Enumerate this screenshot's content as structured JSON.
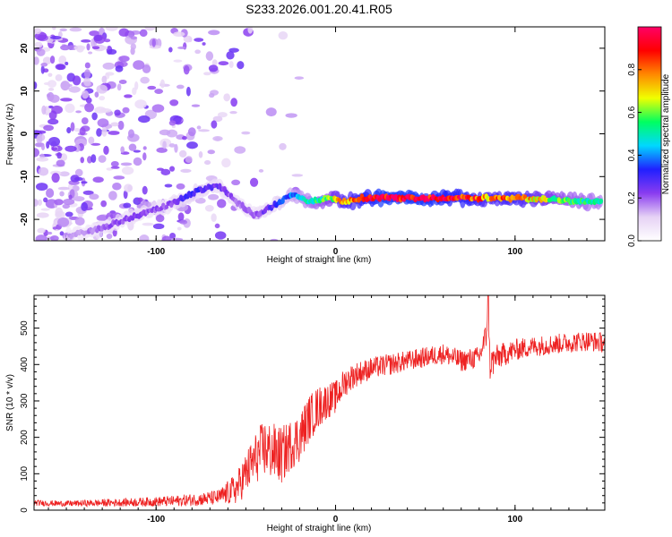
{
  "title": "S233.2026.001.20.41.R05",
  "colors": {
    "snr_line": "#ee2222",
    "axis": "#000000",
    "background": "#ffffff"
  },
  "chart_data": [
    {
      "type": "heatmap",
      "xlabel": "Height of straight line (km)",
      "ylabel": "Frequency (Hz)",
      "xlim": [
        -168,
        150
      ],
      "ylim": [
        -25,
        25
      ],
      "xticks": [
        -100,
        0,
        100
      ],
      "yticks": [
        -20,
        -10,
        0,
        10,
        20
      ],
      "colorbar": {
        "label": "Normalized spectral amplitude",
        "range": [
          0,
          1
        ],
        "ticks": [
          "0.0",
          "0.2",
          "0.4",
          "0.6",
          "0.8"
        ],
        "colormap": [
          "#ffffff",
          "#e6d2f5",
          "#8a3cf0",
          "#2020ff",
          "#00d8ff",
          "#00ff60",
          "#f0ff00",
          "#ff8800",
          "#ff0000",
          "#ff0066"
        ]
      },
      "ridge": {
        "description": "dominant frequency trace vs height",
        "x": [
          -150,
          -130,
          -110,
          -95,
          -85,
          -75,
          -65,
          -55,
          -45,
          -35,
          -25,
          -15,
          -5,
          5,
          15,
          25,
          50,
          75,
          85,
          100,
          125,
          148
        ],
        "y": [
          -24,
          -22,
          -19,
          -17,
          -15,
          -13,
          -12,
          -16,
          -19,
          -17,
          -14,
          -16,
          -15,
          -16,
          -15,
          -15,
          -15,
          -15,
          -15,
          -15,
          -15.5,
          -16
        ],
        "amplitude": [
          0.15,
          0.2,
          0.25,
          0.2,
          0.3,
          0.3,
          0.25,
          0.2,
          0.2,
          0.3,
          0.4,
          0.5,
          0.6,
          0.8,
          0.9,
          1.0,
          1.0,
          0.9,
          0.8,
          0.85,
          0.6,
          0.5
        ]
      }
    },
    {
      "type": "line",
      "xlabel": "Height of straight line (km)",
      "ylabel": "SNR (10 * v/v)",
      "xlim": [
        -168,
        150
      ],
      "ylim": [
        0,
        590
      ],
      "xticks": [
        -100,
        0,
        100
      ],
      "yticks": [
        0,
        100,
        200,
        300,
        400,
        500
      ],
      "series": [
        {
          "name": "SNR",
          "x": [
            -168,
            -150,
            -130,
            -110,
            -90,
            -75,
            -65,
            -55,
            -50,
            -45,
            -40,
            -35,
            -30,
            -25,
            -20,
            -15,
            -10,
            -5,
            0,
            5,
            10,
            20,
            30,
            40,
            50,
            60,
            70,
            80,
            84,
            85,
            86,
            90,
            100,
            110,
            120,
            130,
            140,
            150
          ],
          "values": [
            20,
            18,
            20,
            22,
            25,
            30,
            35,
            60,
            100,
            140,
            170,
            160,
            150,
            180,
            200,
            250,
            280,
            300,
            310,
            350,
            370,
            390,
            400,
            410,
            420,
            430,
            410,
            420,
            480,
            580,
            400,
            420,
            440,
            450,
            455,
            460,
            465,
            460
          ],
          "noise_amplitude": [
            8,
            8,
            10,
            12,
            15,
            18,
            22,
            45,
            60,
            70,
            80,
            80,
            80,
            70,
            70,
            65,
            60,
            50,
            45,
            40,
            35,
            30,
            30,
            28,
            28,
            28,
            30,
            30,
            40,
            10,
            50,
            35,
            30,
            28,
            28,
            28,
            28,
            28
          ]
        }
      ]
    }
  ]
}
